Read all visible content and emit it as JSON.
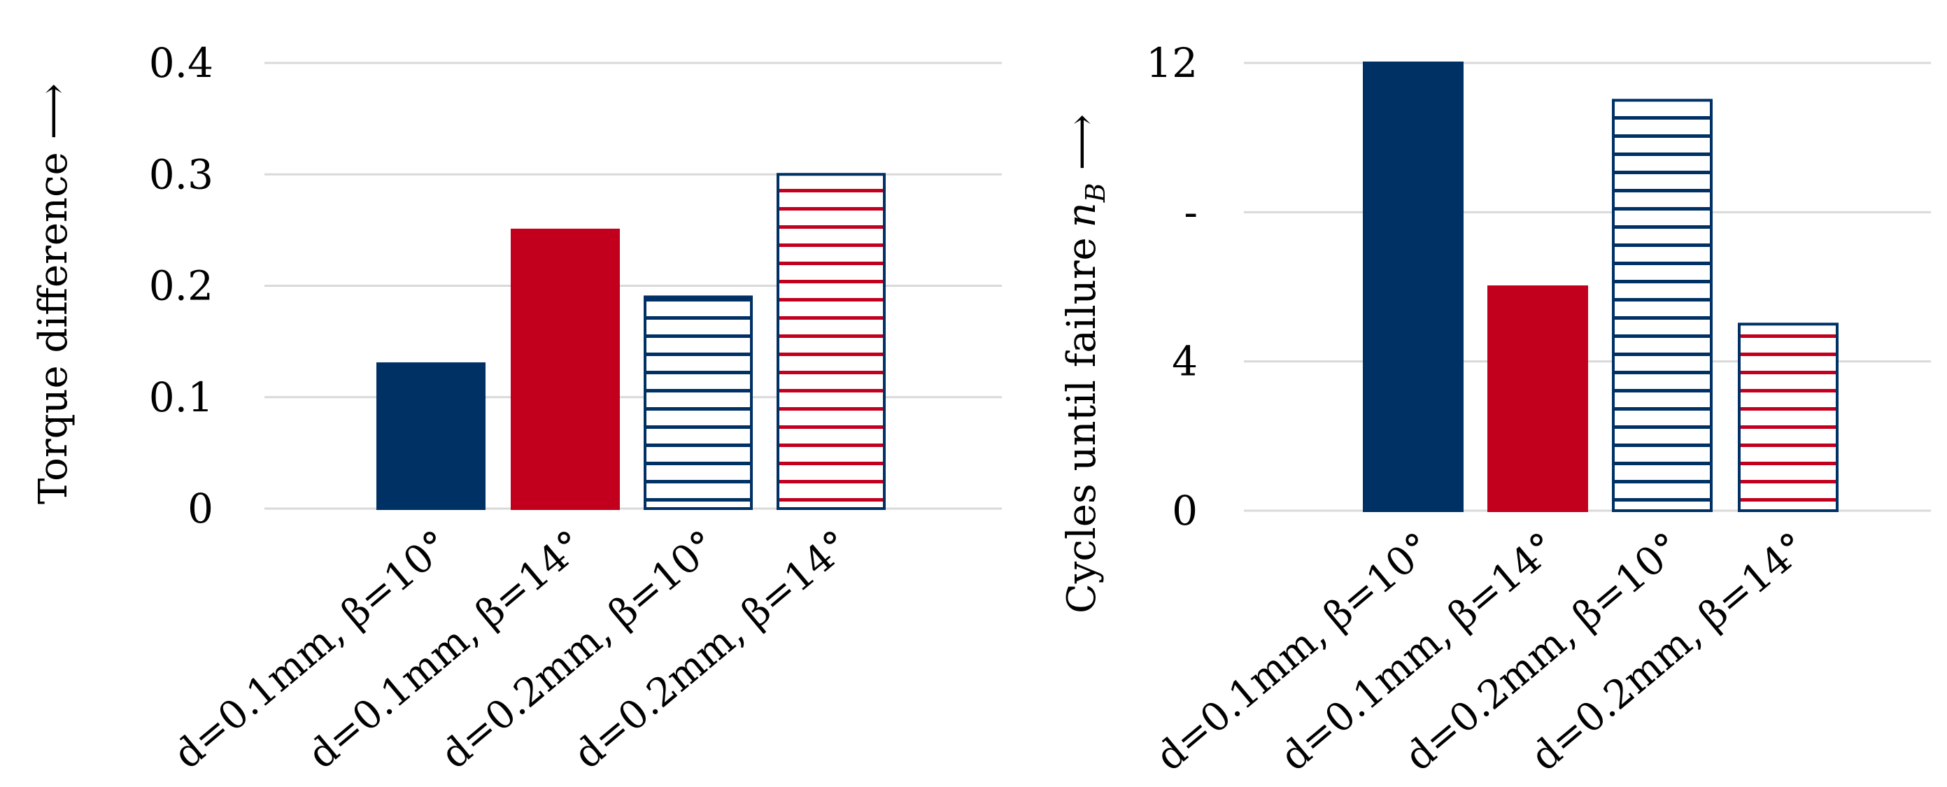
{
  "colors": {
    "blue": "#003165",
    "red": "#C2001E",
    "grid": "#D9D9D9",
    "axis": "#000000"
  },
  "chart_data": [
    {
      "type": "bar",
      "ylabel": "Torque difference",
      "ylabel_arrow": "⟶",
      "yticks": [
        "0",
        "0.1",
        "0.2",
        "0.3",
        "0.4"
      ],
      "ylim": [
        0,
        0.4
      ],
      "categories": [
        "d=0.1mm, β=10°",
        "d=0.1mm, β=14°",
        "d=0.2mm, β=10°",
        "d=0.2mm, β=14°"
      ],
      "values": [
        0.13,
        0.25,
        0.19,
        0.3
      ],
      "fills": [
        "solid",
        "solid",
        "hatched",
        "hatched"
      ],
      "colors": [
        "blue",
        "red",
        "blue",
        "red"
      ],
      "grid": true,
      "legend": "none"
    },
    {
      "type": "bar",
      "ylabel": "Cycles until failure",
      "ylabel_symbol": "n",
      "ylabel_subscript": "B",
      "ylabel_arrow": "⟶",
      "yticks": [
        "0",
        "4",
        "-",
        "12"
      ],
      "ylim": [
        0,
        12
      ],
      "categories": [
        "d=0.1mm, β=10°",
        "d=0.1mm, β=14°",
        "d=0.2mm, β=10°",
        "d=0.2mm, β=14°"
      ],
      "values": [
        12,
        6,
        11,
        5
      ],
      "fills": [
        "solid",
        "solid",
        "hatched",
        "hatched"
      ],
      "colors": [
        "blue",
        "red",
        "blue",
        "red"
      ],
      "grid": true,
      "legend": "none"
    }
  ]
}
